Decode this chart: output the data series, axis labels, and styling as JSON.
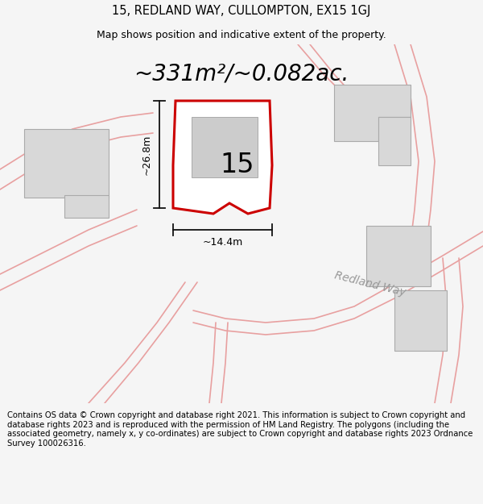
{
  "title": "15, REDLAND WAY, CULLOMPTON, EX15 1GJ",
  "subtitle": "Map shows position and indicative extent of the property.",
  "area_text": "~331m²/~0.082ac.",
  "plot_number": "15",
  "dim_width": "~14.4m",
  "dim_height": "~26.8m",
  "road_label": "Redland Way",
  "footer": "Contains OS data © Crown copyright and database right 2021. This information is subject to Crown copyright and database rights 2023 and is reproduced with the permission of HM Land Registry. The polygons (including the associated geometry, namely x, y co-ordinates) are subject to Crown copyright and database rights 2023 Ordnance Survey 100026316.",
  "bg_color": "#f5f5f5",
  "map_bg": "#f5f5f5",
  "plot_fill": "#ffffff",
  "plot_edge": "#cc0000",
  "building_fill": "#d8d8d8",
  "building_edge": "#aaaaaa",
  "road_stroke": "#e8a0a0",
  "dim_color": "#111111",
  "road_label_color": "#999999",
  "title_fontsize": 10.5,
  "subtitle_fontsize": 9,
  "area_fontsize": 20,
  "number_fontsize": 24,
  "footer_fontsize": 7.2,
  "road_label_fontsize": 10,
  "dim_fontsize": 9
}
